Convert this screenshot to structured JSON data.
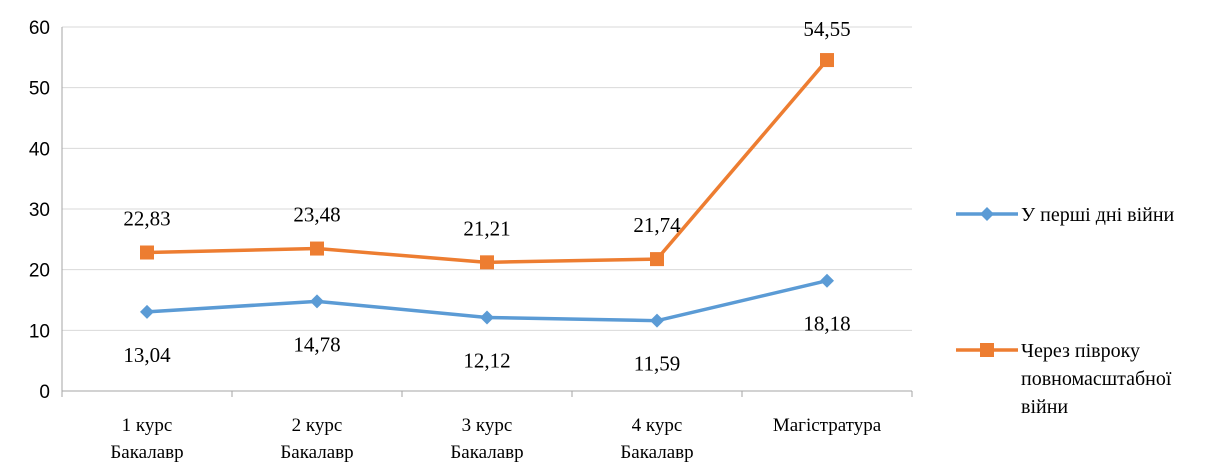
{
  "chart_data": {
    "type": "line",
    "categories": [
      [
        "1 курс",
        "Бакалавр"
      ],
      [
        "2 курс",
        "Бакалавр"
      ],
      [
        "3 курс",
        "Бакалавр"
      ],
      [
        "4 курс",
        "Бакалавр"
      ],
      [
        "Магістратура"
      ]
    ],
    "ylim": [
      0,
      60
    ],
    "yticks": [
      "0",
      "10",
      "20",
      "30",
      "40",
      "50",
      "60"
    ],
    "grid": true,
    "legend_position": "right",
    "series": [
      {
        "name": "У перші дні війни",
        "legend_lines": [
          "У перші дні війни"
        ],
        "color": "#5B9BD5",
        "marker": "diamond",
        "values": [
          13.04,
          14.78,
          12.12,
          11.59,
          18.18
        ],
        "labels": [
          "13,04",
          "14,78",
          "12,12",
          "11,59",
          "18,18"
        ]
      },
      {
        "name": "Через півроку повномасштабної війни",
        "legend_lines": [
          "Через півроку",
          "повномасштабної",
          "війни"
        ],
        "color": "#ED7D31",
        "marker": "square",
        "values": [
          22.83,
          23.48,
          21.21,
          21.74,
          54.55
        ],
        "labels": [
          "22,83",
          "23,48",
          "21,21",
          "21,74",
          "54,55"
        ]
      }
    ]
  }
}
